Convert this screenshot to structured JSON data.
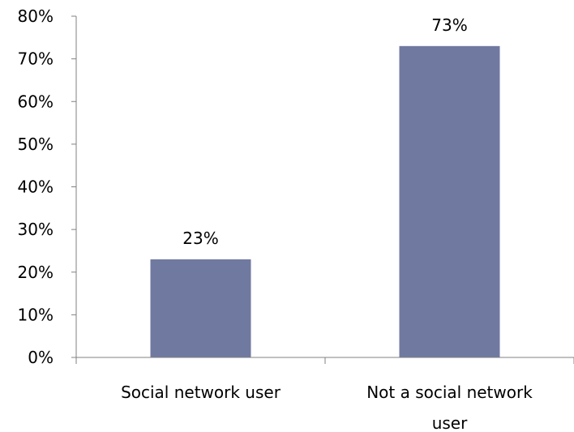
{
  "chart_data": {
    "type": "bar",
    "categories": [
      [
        "Social network user"
      ],
      [
        "Not a social network",
        "user"
      ]
    ],
    "values": [
      23,
      73
    ],
    "data_labels": [
      "23%",
      "73%"
    ],
    "y_ticks": [
      "0%",
      "10%",
      "20%",
      "30%",
      "40%",
      "50%",
      "60%",
      "70%",
      "80%"
    ],
    "ylim": [
      0,
      80
    ],
    "grid": false,
    "legend": "none",
    "bar_color": "#7079a0"
  }
}
